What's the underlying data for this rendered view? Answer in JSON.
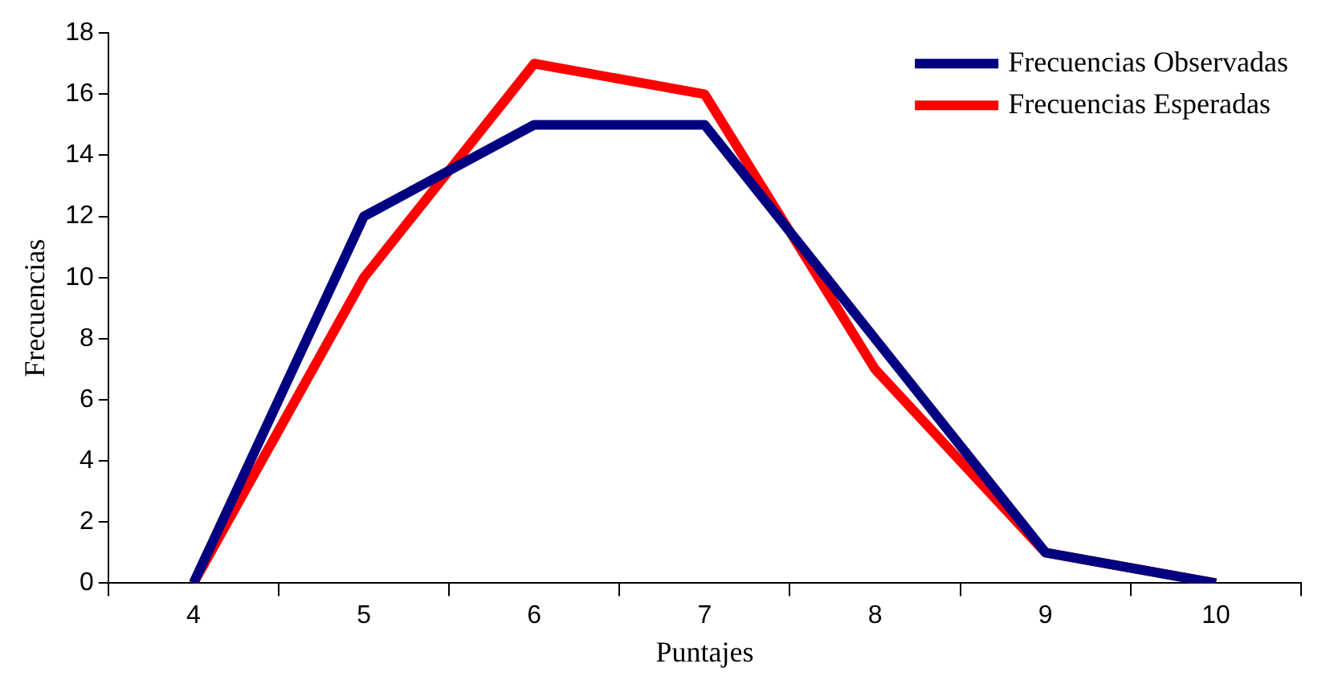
{
  "chart_data": {
    "type": "line",
    "xlabel": "Puntajes",
    "ylabel": "Frecuencias",
    "categories": [
      "4",
      "5",
      "6",
      "7",
      "8",
      "9",
      "10"
    ],
    "series": [
      {
        "name": "Frecuencias Observadas",
        "color": "#000080",
        "values": [
          0,
          12,
          15,
          15,
          8,
          1,
          0
        ]
      },
      {
        "name": "Frecuencias Esperadas",
        "color": "#ff0000",
        "values": [
          0,
          10,
          17,
          16,
          7,
          1,
          0
        ]
      }
    ],
    "ylim": [
      0,
      18
    ],
    "yticks": [
      0,
      2,
      4,
      6,
      8,
      10,
      12,
      14,
      16,
      18
    ],
    "legend": "top right",
    "marker": "none",
    "line_style": "solid"
  }
}
